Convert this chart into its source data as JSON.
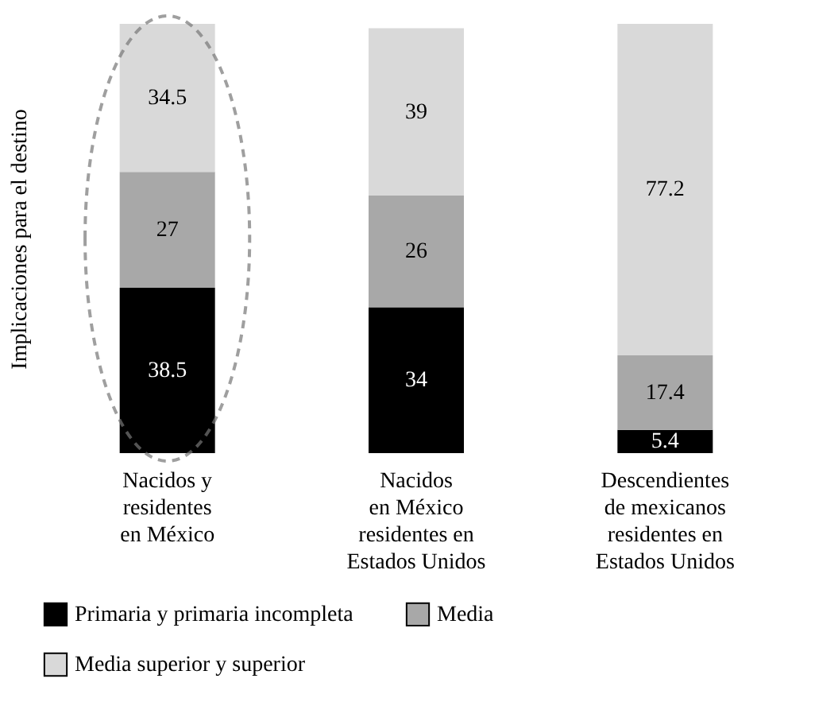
{
  "chart_data": {
    "type": "bar",
    "stacked": true,
    "data_labels": true,
    "legend": "bottom",
    "grid": false,
    "ylabel": "Implicaciones para el destino",
    "categories": [
      "Nacidos y\nresidentes\nen México",
      "Nacidos\nen México\nresidentes en\nEstados Unidos",
      "Descendientes\nde mexicanos\nresidentes en\nEstados Unidos"
    ],
    "series": [
      {
        "name": "Primaria y primaria incompleta",
        "color": "#000000",
        "values": [
          38.5,
          34,
          5.4
        ]
      },
      {
        "name": "Media",
        "color": "#a8a8a8",
        "values": [
          27,
          26,
          17.4
        ]
      },
      {
        "name": "Media superior y superior",
        "color": "#d9d9d9",
        "values": [
          34.5,
          39,
          77.2
        ]
      }
    ]
  }
}
